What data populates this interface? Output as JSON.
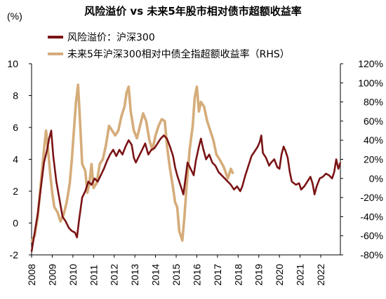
{
  "chart_data": {
    "type": "line",
    "title": "风险溢价 vs 未来5年股市相对债市超额收益率",
    "y_unit": "(%)",
    "y_left": {
      "ylim": [
        -2,
        10
      ],
      "ticks": [
        -2,
        0,
        2,
        4,
        6,
        8,
        10
      ],
      "tick_labels": [
        "-2",
        "0",
        "2",
        "4",
        "6",
        "8",
        "10"
      ]
    },
    "y_right": {
      "ylim": [
        -0.8,
        1.2
      ],
      "ticks": [
        -0.8,
        -0.6,
        -0.4,
        -0.2,
        0,
        0.2,
        0.4,
        0.6,
        0.8,
        1.0,
        1.2
      ],
      "tick_labels": [
        "-80%",
        "-60%",
        "-40%",
        "-20%",
        "0%",
        "20%",
        "40%",
        "60%",
        "80%",
        "100%",
        "120%"
      ]
    },
    "x_axis": {
      "xlim": [
        2008.0,
        2022.95
      ],
      "ticks": [
        2008,
        2009,
        2010,
        2011,
        2012,
        2013,
        2014,
        2015,
        2016,
        2017,
        2018,
        2019,
        2020,
        2021,
        2022
      ],
      "tick_labels": [
        "2008",
        "2009",
        "2010",
        "2011",
        "2012",
        "2013",
        "2014",
        "2015",
        "2016",
        "2017",
        "2018",
        "2019",
        "2020",
        "2021",
        "2022"
      ]
    },
    "grid": false,
    "legend_position": "top-left",
    "series": [
      {
        "name": "风险溢价：沪深300",
        "axis": "left",
        "color": "#7B1416",
        "points": [
          [
            2008.0,
            -1.8
          ],
          [
            2008.15,
            -0.6
          ],
          [
            2008.3,
            0.6
          ],
          [
            2008.45,
            2.2
          ],
          [
            2008.6,
            3.8
          ],
          [
            2008.75,
            4.6
          ],
          [
            2008.85,
            5.3
          ],
          [
            2008.95,
            5.8
          ],
          [
            2009.05,
            4.2
          ],
          [
            2009.2,
            2.6
          ],
          [
            2009.35,
            1.5
          ],
          [
            2009.5,
            0.4
          ],
          [
            2009.65,
            0.1
          ],
          [
            2009.8,
            -0.3
          ],
          [
            2009.95,
            -0.5
          ],
          [
            2010.1,
            -0.6
          ],
          [
            2010.2,
            -0.9
          ],
          [
            2010.3,
            0.2
          ],
          [
            2010.45,
            1.6
          ],
          [
            2010.6,
            2.0
          ],
          [
            2010.75,
            2.6
          ],
          [
            2010.9,
            2.4
          ],
          [
            2011.05,
            2.8
          ],
          [
            2011.2,
            2.6
          ],
          [
            2011.35,
            3.0
          ],
          [
            2011.5,
            3.4
          ],
          [
            2011.65,
            3.9
          ],
          [
            2011.8,
            4.3
          ],
          [
            2011.95,
            4.6
          ],
          [
            2012.1,
            4.2
          ],
          [
            2012.25,
            4.6
          ],
          [
            2012.4,
            4.3
          ],
          [
            2012.55,
            4.8
          ],
          [
            2012.7,
            5.2
          ],
          [
            2012.85,
            4.9
          ],
          [
            2012.95,
            4.1
          ],
          [
            2013.05,
            3.8
          ],
          [
            2013.2,
            4.2
          ],
          [
            2013.35,
            4.6
          ],
          [
            2013.5,
            5.0
          ],
          [
            2013.65,
            4.3
          ],
          [
            2013.8,
            4.6
          ],
          [
            2013.95,
            4.7
          ],
          [
            2014.1,
            5.0
          ],
          [
            2014.25,
            5.3
          ],
          [
            2014.4,
            5.5
          ],
          [
            2014.55,
            5.3
          ],
          [
            2014.7,
            4.8
          ],
          [
            2014.85,
            4.2
          ],
          [
            2014.95,
            3.5
          ],
          [
            2015.05,
            3.0
          ],
          [
            2015.15,
            2.6
          ],
          [
            2015.25,
            2.2
          ],
          [
            2015.35,
            1.8
          ],
          [
            2015.45,
            2.8
          ],
          [
            2015.55,
            3.8
          ],
          [
            2015.7,
            3.4
          ],
          [
            2015.85,
            3.0
          ],
          [
            2015.95,
            3.9
          ],
          [
            2016.1,
            4.8
          ],
          [
            2016.2,
            5.3
          ],
          [
            2016.3,
            4.7
          ],
          [
            2016.45,
            4.0
          ],
          [
            2016.6,
            4.3
          ],
          [
            2016.75,
            3.8
          ],
          [
            2016.9,
            3.6
          ],
          [
            2017.05,
            3.2
          ],
          [
            2017.2,
            3.0
          ],
          [
            2017.35,
            2.8
          ],
          [
            2017.5,
            2.6
          ],
          [
            2017.65,
            2.4
          ],
          [
            2017.8,
            2.1
          ],
          [
            2017.95,
            2.3
          ],
          [
            2018.1,
            2.0
          ],
          [
            2018.2,
            2.3
          ],
          [
            2018.35,
            3.0
          ],
          [
            2018.5,
            3.6
          ],
          [
            2018.65,
            4.2
          ],
          [
            2018.8,
            4.5
          ],
          [
            2018.95,
            4.8
          ],
          [
            2019.05,
            5.1
          ],
          [
            2019.12,
            5.5
          ],
          [
            2019.2,
            4.4
          ],
          [
            2019.35,
            4.1
          ],
          [
            2019.5,
            3.6
          ],
          [
            2019.6,
            3.8
          ],
          [
            2019.75,
            4.0
          ],
          [
            2019.9,
            3.5
          ],
          [
            2020.0,
            3.4
          ],
          [
            2020.1,
            4.3
          ],
          [
            2020.2,
            4.8
          ],
          [
            2020.3,
            4.5
          ],
          [
            2020.4,
            4.1
          ],
          [
            2020.5,
            3.2
          ],
          [
            2020.6,
            2.6
          ],
          [
            2020.8,
            2.4
          ],
          [
            2020.95,
            2.5
          ],
          [
            2021.05,
            2.1
          ],
          [
            2021.2,
            2.3
          ],
          [
            2021.35,
            2.6
          ],
          [
            2021.5,
            2.9
          ],
          [
            2021.6,
            2.5
          ],
          [
            2021.7,
            1.8
          ],
          [
            2021.8,
            2.3
          ],
          [
            2021.95,
            2.8
          ],
          [
            2022.1,
            2.9
          ],
          [
            2022.25,
            3.1
          ],
          [
            2022.4,
            3.0
          ],
          [
            2022.55,
            2.8
          ],
          [
            2022.65,
            3.2
          ],
          [
            2022.75,
            4.0
          ],
          [
            2022.85,
            3.4
          ],
          [
            2022.95,
            3.8
          ]
        ]
      },
      {
        "name": "未来5年沪深300相对中债全指超额收益率（RHS）",
        "axis": "right",
        "color": "#D5AC7A",
        "points": [
          [
            2008.0,
            -0.66
          ],
          [
            2008.15,
            -0.6
          ],
          [
            2008.3,
            -0.4
          ],
          [
            2008.45,
            -0.05
          ],
          [
            2008.6,
            0.3
          ],
          [
            2008.7,
            0.5
          ],
          [
            2008.8,
            0.3
          ],
          [
            2008.9,
            0.05
          ],
          [
            2009.0,
            -0.15
          ],
          [
            2009.1,
            -0.3
          ],
          [
            2009.25,
            -0.35
          ],
          [
            2009.4,
            -0.45
          ],
          [
            2009.55,
            -0.38
          ],
          [
            2009.7,
            -0.25
          ],
          [
            2009.85,
            -0.05
          ],
          [
            2009.95,
            0.2
          ],
          [
            2010.05,
            0.5
          ],
          [
            2010.15,
            0.8
          ],
          [
            2010.25,
            0.98
          ],
          [
            2010.32,
            0.7
          ],
          [
            2010.45,
            0.15
          ],
          [
            2010.6,
            0.08
          ],
          [
            2010.7,
            -0.15
          ],
          [
            2010.8,
            -0.05
          ],
          [
            2010.9,
            0.15
          ],
          [
            2011.0,
            -0.1
          ],
          [
            2011.15,
            -0.05
          ],
          [
            2011.3,
            0.15
          ],
          [
            2011.45,
            0.2
          ],
          [
            2011.6,
            0.35
          ],
          [
            2011.75,
            0.55
          ],
          [
            2011.9,
            0.5
          ],
          [
            2012.05,
            0.45
          ],
          [
            2012.2,
            0.5
          ],
          [
            2012.35,
            0.65
          ],
          [
            2012.5,
            0.75
          ],
          [
            2012.6,
            0.9
          ],
          [
            2012.7,
            0.96
          ],
          [
            2012.8,
            0.7
          ],
          [
            2012.95,
            0.5
          ],
          [
            2013.1,
            0.42
          ],
          [
            2013.25,
            0.55
          ],
          [
            2013.4,
            0.68
          ],
          [
            2013.55,
            0.6
          ],
          [
            2013.7,
            0.4
          ],
          [
            2013.85,
            0.3
          ],
          [
            2014.0,
            0.45
          ],
          [
            2014.15,
            0.55
          ],
          [
            2014.3,
            0.62
          ],
          [
            2014.45,
            0.6
          ],
          [
            2014.55,
            0.35
          ],
          [
            2014.7,
            0.1
          ],
          [
            2014.85,
            -0.1
          ],
          [
            2014.95,
            -0.25
          ],
          [
            2015.05,
            -0.3
          ],
          [
            2015.15,
            -0.55
          ],
          [
            2015.3,
            -0.65
          ],
          [
            2015.4,
            -0.4
          ],
          [
            2015.5,
            -0.1
          ],
          [
            2015.65,
            0.3
          ],
          [
            2015.8,
            0.55
          ],
          [
            2015.9,
            0.85
          ],
          [
            2016.0,
            0.96
          ],
          [
            2016.1,
            0.7
          ],
          [
            2016.2,
            0.8
          ],
          [
            2016.35,
            0.75
          ],
          [
            2016.5,
            0.6
          ],
          [
            2016.65,
            0.5
          ],
          [
            2016.8,
            0.4
          ],
          [
            2016.95,
            0.25
          ],
          [
            2017.1,
            0.2
          ],
          [
            2017.3,
            0.12
          ],
          [
            2017.5,
            0.0
          ],
          [
            2017.65,
            0.1
          ],
          [
            2017.75,
            0.05
          ]
        ]
      }
    ]
  },
  "colors": {
    "risk_premium": "#7B1416",
    "excess_return": "#D5AC7A"
  }
}
